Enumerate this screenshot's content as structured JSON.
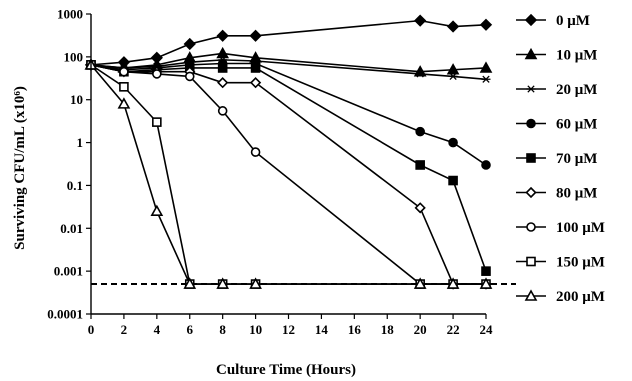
{
  "chart_data": {
    "type": "line",
    "title": "",
    "xlabel": "Culture Time (Hours)",
    "ylabel": "Surviving CFU/mL (x10⁶)",
    "x_scale": "linear",
    "y_scale": "log",
    "xlim": [
      0,
      24
    ],
    "ylim": [
      0.0001,
      1000
    ],
    "x_ticks": [
      0,
      2,
      4,
      6,
      8,
      10,
      12,
      14,
      16,
      18,
      20,
      22,
      24
    ],
    "y_ticks": [
      "0.0001",
      "0.001",
      "0.01",
      "0.1",
      "1",
      "10",
      "100",
      "1000"
    ],
    "grid": false,
    "legend_position": "right",
    "detection_limit": 0.0005,
    "series": [
      {
        "name": "0 μM",
        "marker": "diamond-filled",
        "x": [
          0,
          2,
          4,
          6,
          8,
          10,
          20,
          22,
          24
        ],
        "y": [
          65,
          75,
          95,
          200,
          310,
          310,
          700,
          510,
          560
        ]
      },
      {
        "name": "10 μM",
        "marker": "triangle-filled",
        "x": [
          0,
          2,
          4,
          6,
          8,
          10,
          20,
          22,
          24
        ],
        "y": [
          65,
          55,
          65,
          95,
          120,
          95,
          45,
          50,
          55
        ]
      },
      {
        "name": "20 μM",
        "marker": "asterisk",
        "x": [
          0,
          2,
          4,
          6,
          8,
          10,
          20,
          22,
          24
        ],
        "y": [
          65,
          55,
          60,
          75,
          85,
          80,
          40,
          35,
          30
        ]
      },
      {
        "name": "60 μM",
        "marker": "circle-filled",
        "x": [
          0,
          2,
          4,
          6,
          8,
          10,
          20,
          22,
          24
        ],
        "y": [
          65,
          50,
          55,
          65,
          70,
          70,
          1.8,
          1.0,
          0.3
        ]
      },
      {
        "name": "70 μM",
        "marker": "square-filled",
        "x": [
          0,
          2,
          4,
          6,
          8,
          10,
          20,
          22,
          24
        ],
        "y": [
          65,
          45,
          50,
          55,
          55,
          55,
          0.3,
          0.13,
          0.001
        ]
      },
      {
        "name": "80 μM",
        "marker": "diamond-open",
        "x": [
          0,
          2,
          4,
          6,
          8,
          10,
          20,
          22,
          24
        ],
        "y": [
          65,
          45,
          45,
          45,
          25,
          25,
          0.03,
          0.0005,
          0.0005
        ]
      },
      {
        "name": "100 μM",
        "marker": "circle-open",
        "x": [
          0,
          2,
          4,
          6,
          8,
          10,
          20,
          22,
          24
        ],
        "y": [
          65,
          45,
          40,
          35,
          5.5,
          0.6,
          0.0005,
          0.0005,
          0.0005
        ]
      },
      {
        "name": "150 μM",
        "marker": "square-open",
        "x": [
          0,
          2,
          4,
          6,
          8,
          10,
          20,
          22,
          24
        ],
        "y": [
          65,
          20,
          3,
          0.0005,
          0.0005,
          0.0005,
          0.0005,
          0.0005,
          0.0005
        ]
      },
      {
        "name": "200 μM",
        "marker": "triangle-open",
        "x": [
          0,
          2,
          4,
          6,
          8,
          10,
          20,
          22,
          24
        ],
        "y": [
          65,
          8,
          0.025,
          0.0005,
          0.0005,
          0.0005,
          0.0005,
          0.0005,
          0.0005
        ]
      }
    ]
  }
}
